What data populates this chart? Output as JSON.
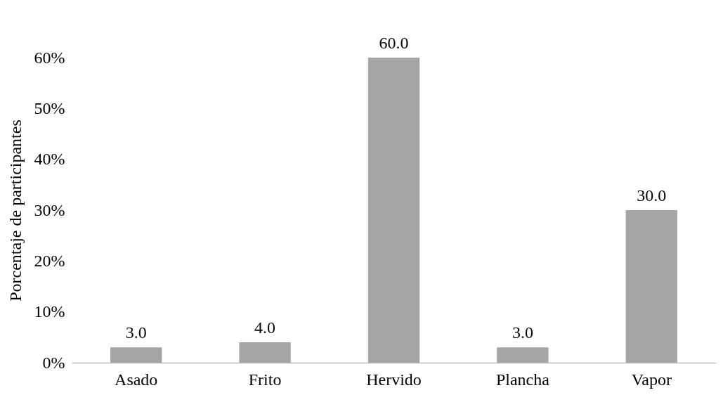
{
  "chart_data": {
    "type": "bar",
    "ylabel": "Porcentaje de participantes",
    "categories": [
      "Asado",
      "Frito",
      "Hervido",
      "Plancha",
      "Vapor"
    ],
    "values": [
      3,
      4,
      60,
      3,
      30
    ],
    "value_labels": [
      "3.0",
      "4.0",
      "60.0",
      "3.0",
      "30.0"
    ],
    "color": "#a5a5a5",
    "ylim": [
      0,
      60
    ],
    "yticks": [
      {
        "value": 0,
        "label": "0%"
      },
      {
        "value": 10,
        "label": "10%"
      },
      {
        "value": 20,
        "label": "20%"
      },
      {
        "value": 30,
        "label": "30%"
      },
      {
        "value": 40,
        "label": "40%"
      },
      {
        "value": 50,
        "label": "50%"
      },
      {
        "value": 60,
        "label": "60%"
      }
    ]
  }
}
